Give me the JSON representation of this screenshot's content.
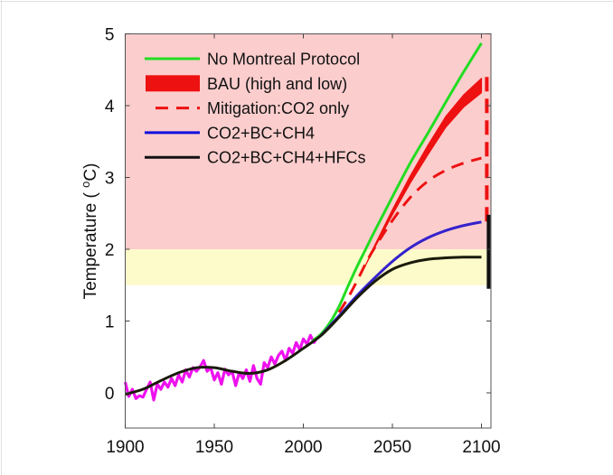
{
  "chart_data": {
    "type": "line",
    "title": "",
    "xlabel": "",
    "ylabel": "Temperature ( °C)",
    "ylabel_parts": {
      "main": "Temperature ( ",
      "sup": "o",
      "unit": "C)"
    },
    "xlim": [
      1900,
      2105
    ],
    "ylim": [
      -0.5,
      5
    ],
    "xticks": [
      1900,
      1950,
      2000,
      2050,
      2100
    ],
    "yticks": [
      0,
      1,
      2,
      3,
      4,
      5
    ],
    "grid": false,
    "legend_position": "top-left",
    "bands": [
      {
        "name": "danger-zone",
        "y_from": 2,
        "y_to": 5,
        "color": "#fccdcd"
      },
      {
        "name": "target-zone",
        "y_from": 1.5,
        "y_to": 2,
        "color": "#fdfbca"
      }
    ],
    "series": [
      {
        "name": "No Montreal Protocol",
        "color": "#22dd22",
        "style": "solid",
        "x": [
          2005,
          2010,
          2015,
          2020,
          2025,
          2030,
          2035,
          2040,
          2050,
          2060,
          2070,
          2080,
          2090,
          2100
        ],
        "values": [
          0.72,
          0.82,
          0.98,
          1.2,
          1.48,
          1.75,
          2.0,
          2.25,
          2.73,
          3.2,
          3.62,
          4.05,
          4.47,
          4.87
        ]
      },
      {
        "name": "BAU (high and low)",
        "color": "#ee1111",
        "style": "band",
        "x": [
          2035,
          2040,
          2050,
          2060,
          2070,
          2080,
          2090,
          2100
        ],
        "high": [
          1.78,
          2.05,
          2.55,
          3.02,
          3.45,
          3.85,
          4.15,
          4.38
        ],
        "low": [
          1.78,
          2.02,
          2.48,
          2.92,
          3.32,
          3.7,
          3.98,
          4.18
        ]
      },
      {
        "name": "Mitigation:CO2 only",
        "color": "#ee1111",
        "style": "dashed",
        "x": [
          2020,
          2025,
          2030,
          2035,
          2040,
          2050,
          2060,
          2070,
          2080,
          2090,
          2100
        ],
        "values": [
          1.12,
          1.32,
          1.55,
          1.8,
          2.02,
          2.4,
          2.72,
          2.95,
          3.1,
          3.2,
          3.27
        ]
      },
      {
        "name": "CO2+BC+CH4",
        "color": "#3322cc",
        "style": "solid",
        "x": [
          2010,
          2020,
          2030,
          2040,
          2050,
          2060,
          2070,
          2080,
          2090,
          2100
        ],
        "values": [
          0.8,
          1.07,
          1.35,
          1.6,
          1.83,
          2.02,
          2.16,
          2.26,
          2.33,
          2.38
        ]
      },
      {
        "name": "CO2+BC+CH4+HFCs",
        "color": "#111111",
        "style": "solid",
        "x": [
          1900,
          1910,
          1920,
          1930,
          1940,
          1950,
          1960,
          1970,
          1980,
          1990,
          2000,
          2010,
          2020,
          2030,
          2040,
          2050,
          2060,
          2070,
          2080,
          2090,
          2100
        ],
        "values": [
          -0.02,
          0.05,
          0.17,
          0.28,
          0.35,
          0.35,
          0.3,
          0.27,
          0.32,
          0.45,
          0.62,
          0.8,
          1.05,
          1.32,
          1.55,
          1.72,
          1.81,
          1.86,
          1.88,
          1.89,
          1.89
        ]
      },
      {
        "name": "Observed",
        "color": "#ee11ee",
        "style": "solid",
        "in_legend": false,
        "x": [
          1900,
          1902,
          1904,
          1906,
          1908,
          1910,
          1912,
          1914,
          1916,
          1918,
          1920,
          1922,
          1924,
          1926,
          1928,
          1930,
          1932,
          1934,
          1936,
          1938,
          1940,
          1942,
          1944,
          1946,
          1948,
          1950,
          1952,
          1954,
          1956,
          1958,
          1960,
          1962,
          1964,
          1966,
          1968,
          1970,
          1972,
          1974,
          1976,
          1978,
          1980,
          1982,
          1984,
          1986,
          1988,
          1990,
          1992,
          1994,
          1996,
          1998,
          2000,
          2002,
          2004,
          2006,
          2008
        ],
        "values": [
          0.15,
          -0.05,
          0.05,
          -0.08,
          -0.04,
          -0.06,
          0.05,
          0.15,
          -0.1,
          0.12,
          0.05,
          0.15,
          0.08,
          0.2,
          0.1,
          0.25,
          0.15,
          0.32,
          0.22,
          0.35,
          0.3,
          0.36,
          0.45,
          0.3,
          0.35,
          0.18,
          0.28,
          0.12,
          0.33,
          0.25,
          0.3,
          0.1,
          0.28,
          0.2,
          0.32,
          0.16,
          0.38,
          0.2,
          0.12,
          0.42,
          0.35,
          0.5,
          0.4,
          0.52,
          0.58,
          0.45,
          0.62,
          0.55,
          0.7,
          0.6,
          0.75,
          0.68,
          0.8,
          0.7,
          0.78
        ]
      }
    ],
    "range_bars_2100": [
      {
        "name": "Mitigation:CO2 only range",
        "color": "#ee1111",
        "style": "dashed",
        "x": 2103,
        "y_from": 2.35,
        "y_to": 4.4
      },
      {
        "name": "CO2+BC+CH4+HFCs range",
        "color": "#111111",
        "style": "solid",
        "x": 2104,
        "y_from": 1.45,
        "y_to": 2.48
      }
    ]
  }
}
